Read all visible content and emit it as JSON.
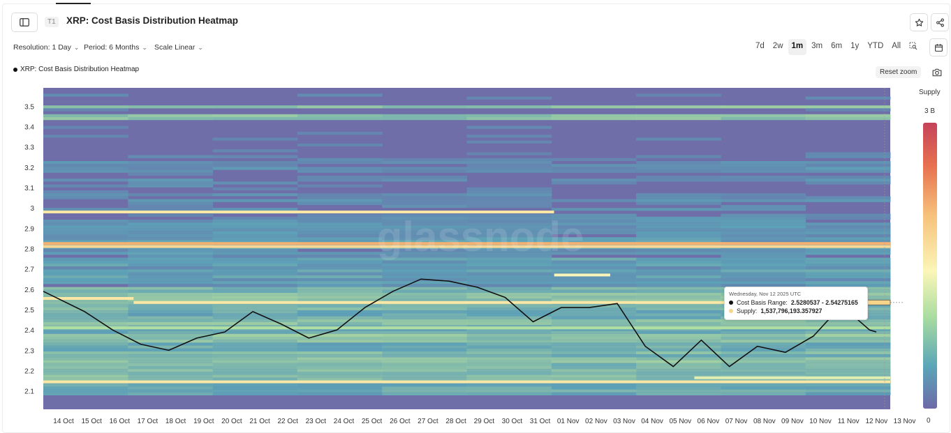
{
  "header": {
    "badge": "T1",
    "title": "XRP: Cost Basis Distribution Heatmap"
  },
  "controls": {
    "resolution": "Resolution: 1 Day",
    "period": "Period: 6 Months",
    "scale": "Scale Linear"
  },
  "periods": [
    "7d",
    "2w",
    "1m",
    "3m",
    "6m",
    "1y",
    "YTD",
    "All"
  ],
  "active_period": "1m",
  "legend_label": "XRP: Cost Basis Distribution Heatmap",
  "reset_zoom": "Reset zoom",
  "watermark": "glassnode",
  "colorbar": {
    "title": "Supply",
    "max_label": "3 B",
    "min_label": "0",
    "colors": [
      "#c5435a",
      "#e7714f",
      "#f6c07a",
      "#fbf6b8",
      "#a9dca0",
      "#5ba6b8",
      "#6c6aa8"
    ]
  },
  "tooltip": {
    "date": "Wednesday, Nov 12 2025 UTC",
    "range_label": "Cost Basis Range:",
    "range_value": "2.5280537 - 2.54275165",
    "supply_label": "Supply:",
    "supply_value": "1,537,796,193.357927"
  },
  "chart_data": {
    "type": "heatmap",
    "title": "XRP: Cost Basis Distribution Heatmap",
    "ylim": [
      2.01,
      3.59
    ],
    "y_ticks": [
      2.1,
      2.2,
      2.3,
      2.4,
      2.5,
      2.6,
      2.7,
      2.8,
      2.9,
      3,
      3.1,
      3.2,
      3.3,
      3.4,
      3.5
    ],
    "x_ticks": [
      "14 Oct",
      "15 Oct",
      "16 Oct",
      "17 Oct",
      "18 Oct",
      "19 Oct",
      "20 Oct",
      "21 Oct",
      "22 Oct",
      "23 Oct",
      "24 Oct",
      "25 Oct",
      "26 Oct",
      "27 Oct",
      "28 Oct",
      "29 Oct",
      "30 Oct",
      "31 Oct",
      "01 Nov",
      "02 Nov",
      "03 Nov",
      "04 Nov",
      "05 Nov",
      "06 Nov",
      "07 Nov",
      "08 Nov",
      "09 Nov",
      "10 Nov",
      "11 Nov",
      "12 Nov",
      "13 Nov"
    ],
    "price_series": {
      "name": "XRP: Cost Basis Distribution Heatmap",
      "color": "#111111",
      "values": [
        2.59,
        2.49,
        2.4,
        2.33,
        2.3,
        2.36,
        2.39,
        2.49,
        2.43,
        2.36,
        2.4,
        2.51,
        2.59,
        2.65,
        2.64,
        2.61,
        2.56,
        2.44,
        2.51,
        2.51,
        2.53,
        2.32,
        2.22,
        2.35,
        2.22,
        2.32,
        2.29,
        2.37,
        2.52,
        2.4,
        2.39
      ]
    },
    "supply_bands": [
      {
        "price": 2.98,
        "from": "14 Oct",
        "to": "31 Oct",
        "level": 0.55
      },
      {
        "price": 2.825,
        "from": "14 Oct",
        "to": "12 Nov",
        "level": 0.7
      },
      {
        "price": 2.81,
        "from": "14 Oct",
        "to": "12 Nov",
        "level": 0.6
      },
      {
        "price": 2.67,
        "from": "01 Nov",
        "to": "02 Nov",
        "level": 0.5
      },
      {
        "price": 2.555,
        "from": "14 Oct",
        "to": "16 Oct",
        "level": 0.55
      },
      {
        "price": 2.535,
        "from": "17 Oct",
        "to": "12 Nov",
        "level": 0.55
      },
      {
        "price": 2.41,
        "from": "14 Oct",
        "to": "12 Nov",
        "level": 0.35
      },
      {
        "price": 2.145,
        "from": "14 Oct",
        "to": "12 Nov",
        "level": 0.55
      },
      {
        "price": 2.165,
        "from": "06 Nov",
        "to": "12 Nov",
        "level": 0.45
      }
    ],
    "grid": false,
    "legend_position": "top-left"
  }
}
